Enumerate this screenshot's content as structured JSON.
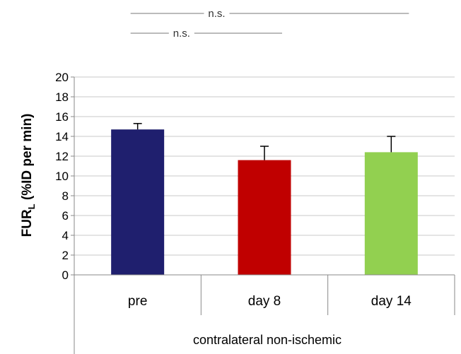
{
  "chart_data": {
    "type": "bar",
    "categories": [
      "pre",
      "day 8",
      "day 14"
    ],
    "values": [
      14.7,
      11.6,
      12.4
    ],
    "errors": [
      0.6,
      1.4,
      1.6
    ],
    "colors": [
      "#1f1f6e",
      "#c00000",
      "#92d050"
    ],
    "ylabel_main": "FUR",
    "ylabel_sub": "L",
    "ylabel_rest": " (%ID per min)",
    "xlabel": "contralateral non-ischemic",
    "ylim": [
      0,
      20
    ],
    "yticks": [
      0,
      2,
      4,
      6,
      8,
      10,
      12,
      14,
      16,
      18,
      20
    ],
    "grid": true,
    "significance": [
      {
        "label": "n.s.",
        "from": "pre",
        "to": "day 14"
      },
      {
        "label": "n.s.",
        "from": "pre",
        "to": "day 8"
      }
    ]
  }
}
